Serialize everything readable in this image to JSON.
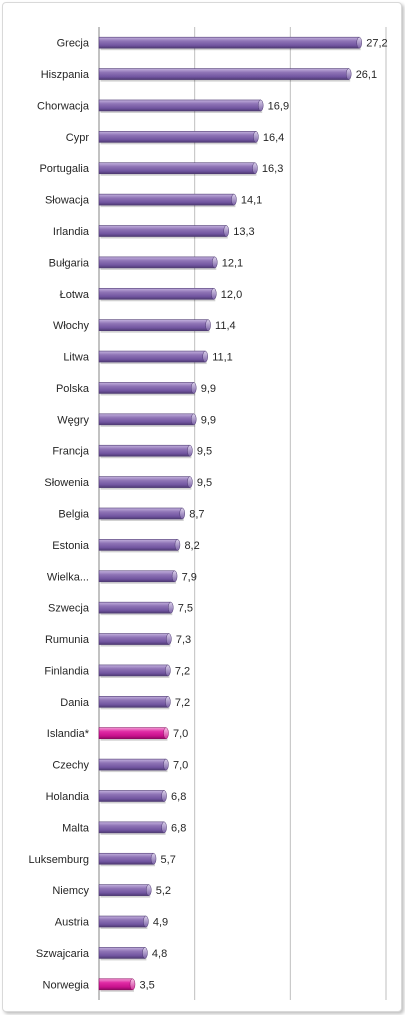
{
  "chart_data": {
    "type": "bar",
    "orientation": "horizontal",
    "categories": [
      "Grecja",
      "Hiszpania",
      "Chorwacja",
      "Cypr",
      "Portugalia",
      "Słowacja",
      "Irlandia",
      "Bułgaria",
      "Łotwa",
      "Włochy",
      "Litwa",
      "Polska",
      "Węgry",
      "Francja",
      "Słowenia",
      "Belgia",
      "Estonia",
      "Wielka...",
      "Szwecja",
      "Rumunia",
      "Finlandia",
      "Dania",
      "Islandia*",
      "Czechy",
      "Holandia",
      "Malta",
      "Luksemburg",
      "Niemcy",
      "Austria",
      "Szwajcaria",
      "Norwegia"
    ],
    "values": [
      27.2,
      26.1,
      16.9,
      16.4,
      16.3,
      14.1,
      13.3,
      12.1,
      12.0,
      11.4,
      11.1,
      9.9,
      9.9,
      9.5,
      9.5,
      8.7,
      8.2,
      7.9,
      7.5,
      7.3,
      7.2,
      7.2,
      7.0,
      7.0,
      6.8,
      6.8,
      5.7,
      5.2,
      4.9,
      4.8,
      3.5
    ],
    "value_labels": [
      "27,2",
      "26,1",
      "16,9",
      "16,4",
      "16,3",
      "14,1",
      "13,3",
      "12,1",
      "12,0",
      "11,4",
      "11,1",
      "9,9",
      "9,9",
      "9,5",
      "9,5",
      "8,7",
      "8,2",
      "7,9",
      "7,5",
      "7,3",
      "7,2",
      "7,2",
      "7,0",
      "7,0",
      "6,8",
      "6,8",
      "5,7",
      "5,2",
      "4,9",
      "4,8",
      "3,5"
    ],
    "highlighted": [
      "Islandia*",
      "Norwegia"
    ],
    "xlim": [
      0,
      30
    ],
    "grid": true,
    "colors": {
      "bar": "#8064a2",
      "highlight": "#e0109a",
      "grid": "#bfbfbf",
      "axis": "#868686"
    }
  }
}
